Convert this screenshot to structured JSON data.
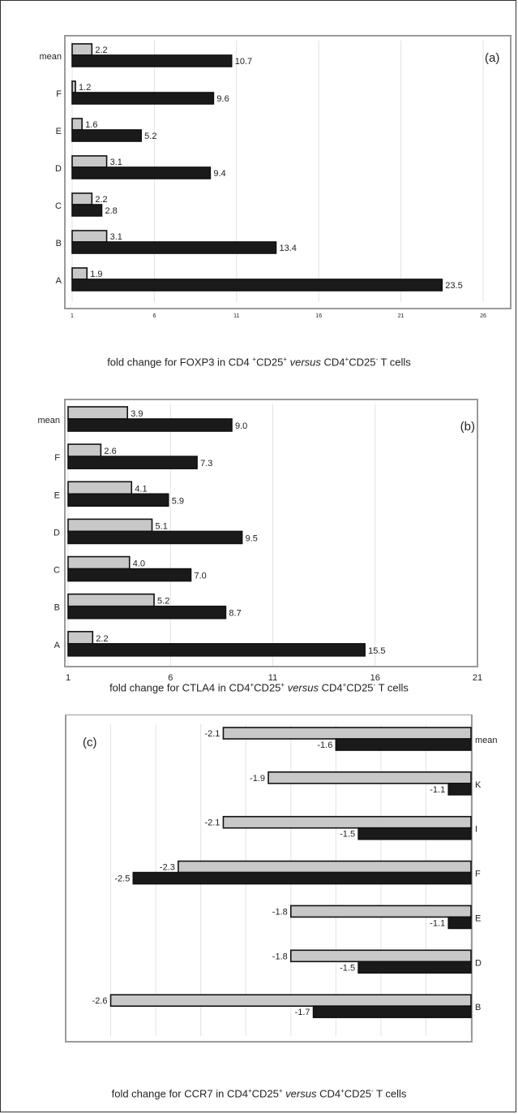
{
  "chart_data": [
    {
      "type": "bar",
      "orientation": "horizontal",
      "panel_label": "(a)",
      "categories": [
        "mean",
        "F",
        "E",
        "D",
        "C",
        "B",
        "A"
      ],
      "series": [
        {
          "values": [
            2.2,
            1.2,
            1.6,
            3.1,
            2.2,
            3.1,
            1.9
          ],
          "color": "#c8c8c8"
        },
        {
          "values": [
            10.7,
            9.6,
            5.2,
            9.4,
            2.8,
            13.4,
            23.5
          ],
          "color": "#1a1a1a"
        }
      ],
      "value_labels": [
        [
          "2.2",
          "1.2",
          "1.6",
          "3.1",
          "2.2",
          "3.1",
          "1.9"
        ],
        [
          "10.7",
          "9.6",
          "5.2",
          "9.4",
          "2.8",
          "13.4",
          "23.5"
        ]
      ],
      "xlim": [
        1,
        26
      ],
      "xticks": [
        "1",
        "6",
        "11",
        "16",
        "21",
        "26"
      ],
      "xlabel_parts": {
        "pre": "fold change for FOXP3 in CD4   ",
        "sup1": "+",
        "mid1": "CD25",
        "sup2": "+",
        "italic": " versus ",
        "mid2": " CD4",
        "sup3": "+",
        "mid3": "CD25",
        "sup4": "-",
        "post": " T cells"
      },
      "grid": "vertical"
    },
    {
      "type": "bar",
      "orientation": "horizontal",
      "panel_label": "(b)",
      "categories": [
        "mean",
        "F",
        "E",
        "D",
        "C",
        "B",
        "A"
      ],
      "series": [
        {
          "values": [
            3.9,
            2.6,
            4.1,
            5.1,
            4.0,
            5.2,
            2.2
          ],
          "color": "#c8c8c8"
        },
        {
          "values": [
            9.0,
            7.3,
            5.9,
            9.5,
            7.0,
            8.7,
            15.5
          ],
          "color": "#1a1a1a"
        }
      ],
      "value_labels": [
        [
          "3.9",
          "2.6",
          "4.1",
          "5.1",
          "4.0",
          "5.2",
          "2.2"
        ],
        [
          "9.0",
          "7.3",
          "5.9",
          "9.5",
          "7.0",
          "8.7",
          "15.5"
        ]
      ],
      "xlim": [
        1,
        21
      ],
      "xticks": [
        "1",
        "6",
        "11",
        "16",
        "21"
      ],
      "xlabel_parts": {
        "pre": "fold change for CTLA4  in CD4",
        "sup1": "+",
        "mid1": "CD25",
        "sup2": "+",
        "italic": " versus ",
        "mid2": " CD4",
        "sup3": "+",
        "mid3": "CD25",
        "sup4": "-",
        "post": " T cells"
      },
      "grid": "vertical"
    },
    {
      "type": "bar",
      "orientation": "horizontal",
      "panel_label": "(c)",
      "categories": [
        "mean",
        "K",
        "I",
        "F",
        "E",
        "D",
        "B"
      ],
      "series": [
        {
          "values": [
            -2.1,
            -1.9,
            -2.1,
            -2.3,
            -1.8,
            -1.8,
            -2.6
          ],
          "color": "#c8c8c8"
        },
        {
          "values": [
            -1.6,
            -1.1,
            -1.5,
            -2.5,
            -1.1,
            -1.5,
            -1.7
          ],
          "color": "#1a1a1a"
        }
      ],
      "value_labels": [
        [
          "-2.1",
          "-1.9",
          "-2.1",
          "-2.3",
          "-1.8",
          "-1.8",
          "-2.6"
        ],
        [
          "-1.6",
          "-1.1",
          "-1.5",
          "-2.5",
          "-1.1",
          "-1.5",
          "-1.7"
        ]
      ],
      "black_bar_value_estimates": [
        -1.58,
        -1.14,
        -1.5,
        -2.46,
        -1.14,
        -1.5,
        -1.7
      ],
      "xlim": [
        -2.8,
        -1.0
      ],
      "xticks": [
        "-2.8",
        "-2.6",
        "-2.4",
        "-2.2",
        "-2.0",
        "-1.8",
        "-1.6",
        "-1.4",
        "-1.2",
        "-1.0"
      ],
      "xlabel_parts": {
        "pre": "fold change for CCR7 in CD4",
        "sup1": "+",
        "mid1": "CD25",
        "sup2": "+",
        "italic": " versus ",
        "mid2": " CD4",
        "sup3": "+",
        "mid3": "CD25",
        "sup4": "-",
        "post": " T cells"
      },
      "grid": "vertical"
    }
  ]
}
